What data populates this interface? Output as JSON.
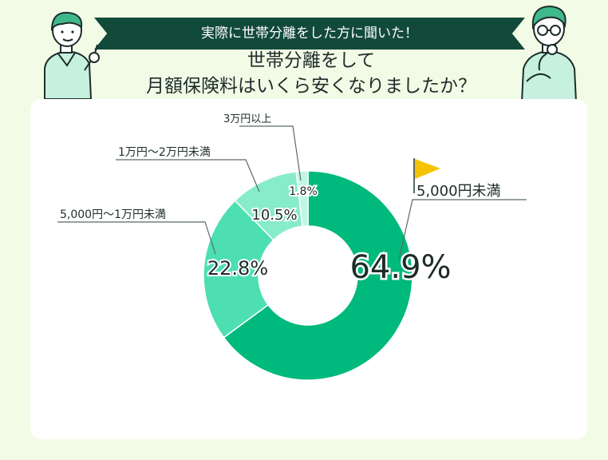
{
  "header": {
    "banner": "実際に世帯分離をした方に聞いた！",
    "title_line1": "世帯分離をして",
    "title_line2": "月額保険料はいくら安くなりましたか？"
  },
  "colors": {
    "slice1": "#00b97c",
    "slice2": "#4ddfb1",
    "slice3": "#86ecc9",
    "slice4": "#c2f6e2",
    "banner": "#124a3a",
    "flag": "#f5c400"
  },
  "chart_data": {
    "type": "pie",
    "donut": true,
    "categories": [
      "5,000円未満",
      "5,000円〜1万円未満",
      "1万円〜2万円未満",
      "3万円以上"
    ],
    "values": [
      64.9,
      22.8,
      10.5,
      1.8
    ],
    "value_labels": [
      "64.9%",
      "22.8%",
      "10.5%",
      "1.8%"
    ],
    "unit": "%"
  }
}
